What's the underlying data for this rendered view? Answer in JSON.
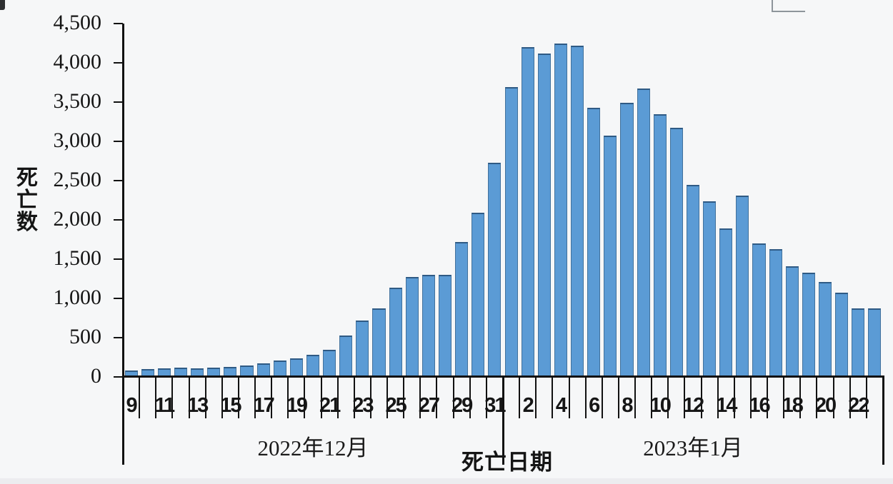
{
  "chart_data": {
    "type": "bar",
    "title": "",
    "ylabel": "死亡数",
    "xlabel": "死亡日期",
    "ylim": [
      0,
      4500
    ],
    "ytick_interval": 500,
    "ytick_labels": [
      "0",
      "500",
      "1,000",
      "1,500",
      "2,000",
      "2,500",
      "3,000",
      "3,500",
      "4,000",
      "4,500"
    ],
    "grid": false,
    "legend": false,
    "bar_color": "#5b9bd5",
    "bar_border_color": "#41719c",
    "groups": [
      {
        "label": "2022年12月",
        "days": [
          9,
          10,
          11,
          12,
          13,
          14,
          15,
          16,
          17,
          18,
          19,
          20,
          21,
          22,
          23,
          24,
          25,
          26,
          27,
          28,
          29,
          30,
          31
        ],
        "values": [
          80,
          100,
          105,
          115,
          110,
          115,
          130,
          150,
          175,
          205,
          235,
          285,
          345,
          530,
          720,
          870,
          1140,
          1270,
          1300,
          1300,
          1720,
          2090,
          2730
        ],
        "labeled_days": [
          9,
          11,
          13,
          15,
          17,
          19,
          21,
          23,
          25,
          27,
          29,
          31
        ]
      },
      {
        "label": "2023年1月",
        "days": [
          1,
          2,
          3,
          4,
          5,
          6,
          7,
          8,
          9,
          10,
          11,
          12,
          13,
          14,
          15,
          16,
          17,
          18,
          19,
          20,
          21,
          22,
          23
        ],
        "values": [
          3690,
          4200,
          4120,
          4250,
          4220,
          3430,
          3070,
          3490,
          3670,
          3350,
          3170,
          2450,
          2240,
          1890,
          2310,
          1700,
          1630,
          1410,
          1330,
          1210,
          1070,
          870,
          870
        ],
        "labeled_days": [
          2,
          4,
          6,
          8,
          10,
          12,
          14,
          16,
          18,
          20,
          22
        ]
      }
    ]
  }
}
